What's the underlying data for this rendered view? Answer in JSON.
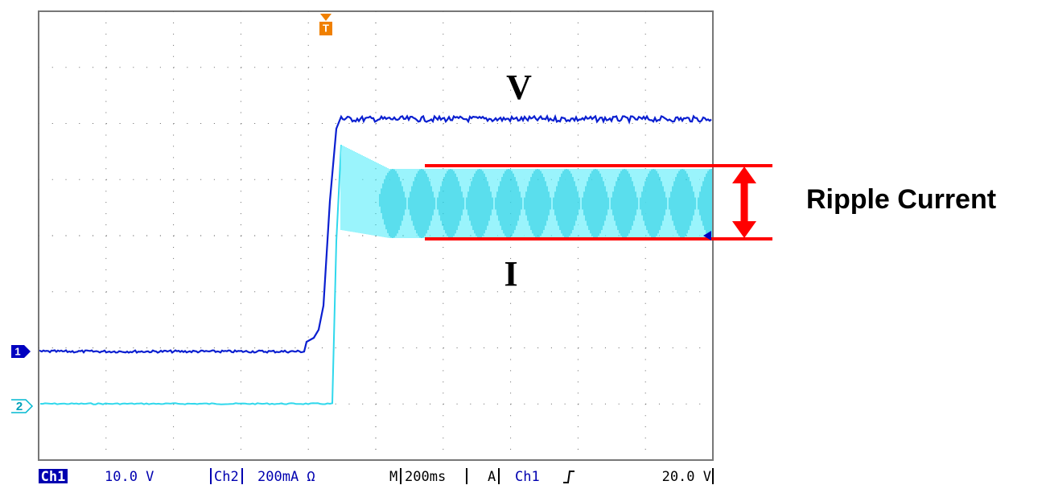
{
  "annotations": {
    "voltage": "V",
    "current": "I",
    "ripple": "Ripple Current"
  },
  "markers": {
    "ch1": "1",
    "ch2": "2",
    "trigger": "T"
  },
  "status_bar": {
    "ch1": "Ch1",
    "ch1_scale": "10.0 V",
    "ch2": "Ch2",
    "ch2_scale": "200mA Ω",
    "timebase_prefix": "M",
    "timebase": "200ms",
    "trigger_prefix": "A",
    "trigger_source": "Ch1",
    "trigger_level": "20.0 V"
  }
}
